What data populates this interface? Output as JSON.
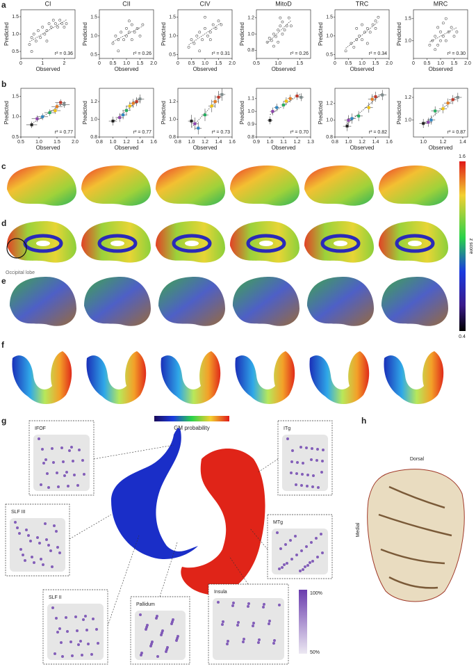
{
  "panels": {
    "a": "a",
    "b": "b",
    "c": "c",
    "d": "d",
    "e": "e",
    "f": "f",
    "g": "g",
    "h": "h"
  },
  "panel_d_annotation": "Occipital lobe",
  "zscore_colorbar": {
    "label": "z score",
    "max": 1.6,
    "min": 0.4
  },
  "panel_g": {
    "colorbar_label": "GM probability",
    "insets": [
      {
        "label": "IFOF"
      },
      {
        "label": "SLF III"
      },
      {
        "label": "SLF II"
      },
      {
        "label": "Pallidum"
      },
      {
        "label": "Insula"
      },
      {
        "label": "ITg"
      },
      {
        "label": "MTg"
      }
    ],
    "scale_max": "100%",
    "scale_min": "50%"
  },
  "panel_h": {
    "top": "Dorsal",
    "side": "Medial"
  },
  "chart_data": [
    {
      "type": "scatter",
      "title": "CI",
      "x_label": "Observed",
      "y_label": "Predicted",
      "annotation": "r² = 0.36",
      "color": "#555",
      "x": [
        0.4,
        0.5,
        0.6,
        0.7,
        0.8,
        0.9,
        1.0,
        1.1,
        1.2,
        1.3,
        1.4,
        1.5,
        1.6,
        1.7,
        1.8,
        1.9,
        2.0,
        2.1,
        0.5,
        1.2
      ],
      "values": [
        0.7,
        0.9,
        1.0,
        0.8,
        1.1,
        0.9,
        1.2,
        1.0,
        1.1,
        1.3,
        1.2,
        1.4,
        1.3,
        1.2,
        1.4,
        1.3,
        1.2,
        1.3,
        0.5,
        0.8
      ],
      "xlim": [
        0,
        2.5
      ],
      "ylim": [
        0.3,
        1.7
      ],
      "xticks": [
        0,
        1,
        2
      ],
      "yticks": [
        0.5,
        {
          "value": 1,
          "label": "1.0"
        },
        1.5
      ]
    },
    {
      "type": "scatter",
      "title": "CII",
      "x_label": "Observed",
      "y_label": "Predicted",
      "annotation": "r² = 0.26",
      "color": "#555",
      "x": [
        0.5,
        0.6,
        0.7,
        0.8,
        0.9,
        1.0,
        1.0,
        1.1,
        1.2,
        1.2,
        1.3,
        1.4,
        1.5,
        1.6,
        0.7,
        1.1
      ],
      "values": [
        0.8,
        1.0,
        0.9,
        1.1,
        0.9,
        1.0,
        1.2,
        1.1,
        0.9,
        1.3,
        1.1,
        1.2,
        1.0,
        1.3,
        0.6,
        1.4
      ],
      "xlim": [
        0,
        2
      ],
      "ylim": [
        0.4,
        1.7
      ],
      "xticks": [
        0,
        0.5,
        {
          "value": 1,
          "label": "1.0"
        },
        1.5,
        {
          "value": 2,
          "label": "2.0"
        }
      ],
      "yticks": [
        0.5,
        {
          "value": 1,
          "label": "1.0"
        },
        1.5
      ]
    },
    {
      "type": "scatter",
      "title": "CIV",
      "x_label": "Observed",
      "y_label": "Predicted",
      "annotation": "r² = 0.31",
      "color": "#555",
      "x": [
        0.4,
        0.5,
        0.6,
        0.7,
        0.8,
        0.9,
        1.0,
        1.1,
        1.2,
        1.3,
        1.4,
        1.5,
        1.6,
        0.8,
        1.2,
        1.0
      ],
      "values": [
        0.7,
        0.9,
        0.8,
        1.0,
        1.1,
        0.9,
        1.2,
        1.0,
        1.1,
        1.3,
        1.2,
        1.4,
        1.3,
        0.6,
        0.9,
        1.5
      ],
      "xlim": [
        0,
        2
      ],
      "ylim": [
        0.4,
        1.7
      ],
      "xticks": [
        0,
        0.5,
        {
          "value": 1,
          "label": "1.0"
        },
        1.5,
        {
          "value": 2,
          "label": "2.0"
        }
      ],
      "yticks": [
        0.5,
        {
          "value": 1,
          "label": "1.0"
        },
        1.5
      ]
    },
    {
      "type": "scatter",
      "title": "MitoD",
      "x_label": "Observed",
      "y_label": "Predicted",
      "annotation": "r² = 0.26",
      "color": "#555",
      "x": [
        0.75,
        0.8,
        0.85,
        0.9,
        0.95,
        1.0,
        1.0,
        1.05,
        1.1,
        1.1,
        1.15,
        1.2,
        1.25,
        0.9,
        1.05,
        1.3
      ],
      "values": [
        0.9,
        0.95,
        0.92,
        1.0,
        0.97,
        1.05,
        0.9,
        1.1,
        1.0,
        1.15,
        1.05,
        1.1,
        1.2,
        0.85,
        1.2,
        1.1
      ],
      "xlim": [
        0.5,
        1.75
      ],
      "ylim": [
        0.7,
        1.3
      ],
      "xticks": [
        0.5,
        {
          "value": 1,
          "label": "1.0"
        },
        1.5
      ],
      "yticks": [
        0.8,
        {
          "value": 1,
          "label": "1.0"
        },
        1.2
      ]
    },
    {
      "type": "scatter",
      "title": "TRC",
      "x_label": "Observed",
      "y_label": "Predicted",
      "annotation": "r² = 0.34",
      "color": "#555",
      "x": [
        0.4,
        0.6,
        0.7,
        0.8,
        0.9,
        1.0,
        1.1,
        1.2,
        1.3,
        1.4,
        1.5,
        1.6,
        0.8,
        1.0,
        1.2,
        1.5
      ],
      "values": [
        0.6,
        0.8,
        0.7,
        0.9,
        1.0,
        0.9,
        1.1,
        1.2,
        1.1,
        1.3,
        1.4,
        1.5,
        1.2,
        1.3,
        0.8,
        1.2
      ],
      "xlim": [
        0,
        2
      ],
      "ylim": [
        0.4,
        1.7
      ],
      "xticks": [
        0,
        0.5,
        {
          "value": 1,
          "label": "1.0"
        },
        1.5,
        {
          "value": 2,
          "label": "2.0"
        }
      ],
      "yticks": [
        0.5,
        {
          "value": 1,
          "label": "1.0"
        },
        1.5
      ]
    },
    {
      "type": "scatter",
      "title": "MRC",
      "x_label": "Observed",
      "y_label": "Predicted",
      "annotation": "r² = 0.30",
      "color": "#555",
      "x": [
        0.6,
        0.7,
        0.8,
        0.9,
        1.0,
        1.0,
        1.1,
        1.2,
        1.3,
        1.4,
        1.5,
        0.8,
        1.1,
        1.2,
        0.9,
        1.6
      ],
      "values": [
        0.9,
        1.0,
        1.1,
        0.9,
        1.0,
        1.2,
        1.1,
        1.0,
        1.2,
        1.3,
        1.1,
        0.8,
        1.4,
        1.5,
        1.3,
        1.2
      ],
      "xlim": [
        0,
        2
      ],
      "ylim": [
        0.6,
        1.7
      ],
      "xticks": [
        0,
        0.5,
        {
          "value": 1,
          "label": "1.0"
        },
        1.5,
        {
          "value": 2,
          "label": "2.0"
        }
      ],
      "yticks": [
        {
          "value": 1,
          "label": "1.0"
        },
        1.5
      ]
    },
    {
      "type": "errorbar",
      "x_label": "Observed",
      "y_label": "Predicted",
      "annotation": "r² = 0.77",
      "point_colors": [
        "#222",
        "#8e44ad",
        "#2e86c1",
        "#27ae60",
        "#f1c40f",
        "#e67e22",
        "#c0392b",
        "#7f8c8d"
      ],
      "x": [
        0.8,
        0.95,
        1.1,
        1.3,
        1.45,
        1.5,
        1.6,
        1.7
      ],
      "values": [
        0.8,
        0.95,
        1.0,
        1.1,
        1.15,
        1.25,
        1.35,
        1.3
      ],
      "xerr": [
        0.15,
        0.15,
        0.15,
        0.15,
        0.15,
        0.15,
        0.15,
        0.15
      ],
      "yerr": [
        0.08,
        0.08,
        0.08,
        0.08,
        0.08,
        0.08,
        0.08,
        0.08
      ],
      "xlim": [
        0.5,
        2
      ],
      "ylim": [
        0.5,
        1.7
      ],
      "xticks": [
        0.5,
        {
          "value": 1,
          "label": "1.0"
        },
        1.5,
        {
          "value": 2,
          "label": "2.0"
        }
      ],
      "yticks": [
        0.5,
        {
          "value": 1,
          "label": "1.0"
        },
        1.5
      ]
    },
    {
      "type": "errorbar",
      "x_label": "Observed",
      "y_label": "Predicted",
      "annotation": "r² = 0.77",
      "point_colors": [
        "#222",
        "#8e44ad",
        "#2e86c1",
        "#27ae60",
        "#f1c40f",
        "#e67e22",
        "#c0392b",
        "#7f8c8d"
      ],
      "x": [
        1.0,
        1.1,
        1.15,
        1.2,
        1.25,
        1.3,
        1.35,
        1.4
      ],
      "values": [
        0.98,
        1.02,
        1.05,
        1.1,
        1.15,
        1.18,
        1.2,
        1.23
      ],
      "xerr": [
        0.06,
        0.06,
        0.06,
        0.06,
        0.06,
        0.06,
        0.06,
        0.06
      ],
      "yerr": [
        0.05,
        0.05,
        0.05,
        0.05,
        0.05,
        0.05,
        0.05,
        0.05
      ],
      "xlim": [
        0.8,
        1.6
      ],
      "ylim": [
        0.8,
        1.35
      ],
      "xticks": [
        0.8,
        {
          "value": 1,
          "label": "1.0"
        },
        1.2,
        1.4,
        1.6
      ],
      "yticks": [
        0.8,
        {
          "value": 1,
          "label": "1.0"
        },
        1.2
      ]
    },
    {
      "type": "errorbar",
      "x_label": "Observed",
      "y_label": "Predicted",
      "annotation": "r² = 0.73",
      "point_colors": [
        "#222",
        "#8e44ad",
        "#2e86c1",
        "#27ae60",
        "#f1c40f",
        "#e67e22",
        "#c0392b",
        "#7f8c8d"
      ],
      "x": [
        1.0,
        1.05,
        1.1,
        1.2,
        1.3,
        1.35,
        1.4,
        1.45
      ],
      "values": [
        0.98,
        0.95,
        0.9,
        1.05,
        1.15,
        1.2,
        1.25,
        1.28
      ],
      "xerr": [
        0.05,
        0.05,
        0.05,
        0.05,
        0.05,
        0.05,
        0.05,
        0.05
      ],
      "yerr": [
        0.07,
        0.07,
        0.07,
        0.07,
        0.07,
        0.07,
        0.07,
        0.07
      ],
      "xlim": [
        0.8,
        1.6
      ],
      "ylim": [
        0.8,
        1.35
      ],
      "xticks": [
        0.8,
        {
          "value": 1,
          "label": "1.0"
        },
        1.2,
        1.4,
        1.6
      ],
      "yticks": [
        0.8,
        {
          "value": 1,
          "label": "1.0"
        },
        1.2
      ]
    },
    {
      "type": "errorbar",
      "x_label": "Observed",
      "y_label": "Predicted",
      "annotation": "r² = 0.70",
      "point_colors": [
        "#222",
        "#8e44ad",
        "#2e86c1",
        "#27ae60",
        "#f1c40f",
        "#e67e22",
        "#c0392b",
        "#7f8c8d"
      ],
      "x": [
        1.0,
        1.02,
        1.05,
        1.1,
        1.12,
        1.15,
        1.2,
        1.23
      ],
      "values": [
        0.93,
        1.0,
        1.03,
        1.05,
        1.08,
        1.1,
        1.12,
        1.11
      ],
      "xerr": [
        0.02,
        0.02,
        0.02,
        0.02,
        0.02,
        0.02,
        0.02,
        0.02
      ],
      "yerr": [
        0.03,
        0.03,
        0.03,
        0.03,
        0.03,
        0.03,
        0.03,
        0.03
      ],
      "xlim": [
        0.9,
        1.3
      ],
      "ylim": [
        0.8,
        1.18
      ],
      "xticks": [
        0.9,
        {
          "value": 1,
          "label": "1.0"
        },
        1.1,
        1.2,
        1.3
      ],
      "yticks": [
        0.8,
        0.9,
        {
          "value": 1,
          "label": "1.0"
        },
        1.1
      ]
    },
    {
      "type": "errorbar",
      "x_label": "Observed",
      "y_label": "Predicted",
      "annotation": "r² = 0.82",
      "point_colors": [
        "#222",
        "#8e44ad",
        "#2e86c1",
        "#27ae60",
        "#f1c40f",
        "#e67e22",
        "#c0392b",
        "#7f8c8d"
      ],
      "x": [
        0.98,
        1.0,
        1.05,
        1.15,
        1.3,
        1.35,
        1.4,
        1.5
      ],
      "values": [
        0.93,
        1.0,
        1.02,
        1.05,
        1.15,
        1.25,
        1.28,
        1.3
      ],
      "xerr": [
        0.06,
        0.06,
        0.06,
        0.06,
        0.06,
        0.06,
        0.06,
        0.06
      ],
      "yerr": [
        0.06,
        0.06,
        0.06,
        0.06,
        0.06,
        0.06,
        0.06,
        0.06
      ],
      "xlim": [
        0.8,
        1.6
      ],
      "ylim": [
        0.8,
        1.38
      ],
      "xticks": [
        0.8,
        {
          "value": 1,
          "label": "1.0"
        },
        1.2,
        1.4,
        1.6
      ],
      "yticks": [
        0.8,
        {
          "value": 1,
          "label": "1.0"
        },
        1.2
      ]
    },
    {
      "type": "errorbar",
      "x_label": "Observed",
      "y_label": "Predicted",
      "annotation": "r² = 0.87",
      "point_colors": [
        "#222",
        "#8e44ad",
        "#2e86c1",
        "#27ae60",
        "#f1c40f",
        "#e67e22",
        "#c0392b",
        "#7f8c8d"
      ],
      "x": [
        1.0,
        1.05,
        1.08,
        1.12,
        1.2,
        1.25,
        1.3,
        1.35
      ],
      "values": [
        0.97,
        0.98,
        1.0,
        1.08,
        1.1,
        1.15,
        1.18,
        1.2
      ],
      "xerr": [
        0.04,
        0.04,
        0.04,
        0.04,
        0.04,
        0.04,
        0.04,
        0.04
      ],
      "yerr": [
        0.04,
        0.04,
        0.04,
        0.04,
        0.04,
        0.04,
        0.04,
        0.04
      ],
      "xlim": [
        0.9,
        1.45
      ],
      "ylim": [
        0.85,
        1.28
      ],
      "xticks": [
        {
          "value": 1,
          "label": "1.0"
        },
        1.2,
        1.4
      ],
      "yticks": [
        {
          "value": 1,
          "label": "1.0"
        },
        1.2
      ]
    }
  ]
}
